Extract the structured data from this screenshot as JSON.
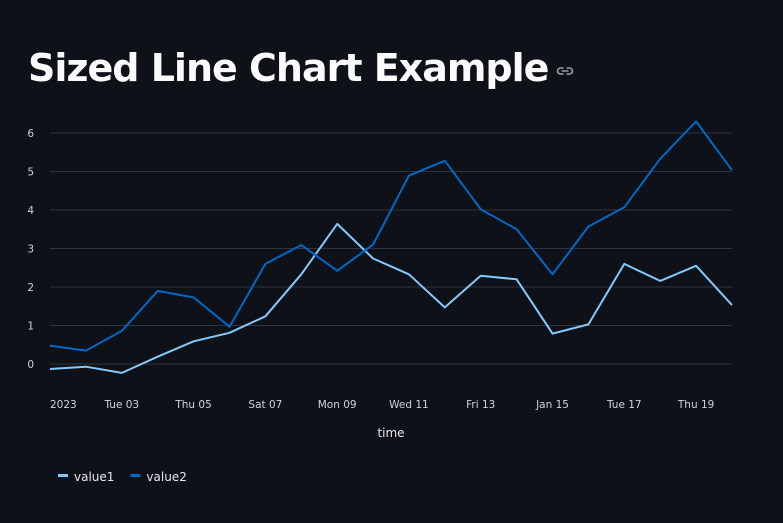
{
  "page": {
    "title": "Sized Line Chart Example"
  },
  "chart_data": {
    "type": "line",
    "xlabel": "time",
    "ylabel": "",
    "ylim": [
      -0.7,
      6.7
    ],
    "yticks": [
      0,
      1,
      2,
      3,
      4,
      5,
      6
    ],
    "x": [
      "2023-01-01",
      "2023-01-02",
      "2023-01-03",
      "2023-01-04",
      "2023-01-05",
      "2023-01-06",
      "2023-01-07",
      "2023-01-08",
      "2023-01-09",
      "2023-01-10",
      "2023-01-11",
      "2023-01-12",
      "2023-01-13",
      "2023-01-14",
      "2023-01-15",
      "2023-01-16",
      "2023-01-17",
      "2023-01-18",
      "2023-01-19",
      "2023-01-20"
    ],
    "xticks": [
      {
        "date": "2023-01-01",
        "label": "2023"
      },
      {
        "date": "2023-01-03",
        "label": "Tue 03"
      },
      {
        "date": "2023-01-05",
        "label": "Thu 05"
      },
      {
        "date": "2023-01-07",
        "label": "Sat 07"
      },
      {
        "date": "2023-01-09",
        "label": "Mon 09"
      },
      {
        "date": "2023-01-11",
        "label": "Wed 11"
      },
      {
        "date": "2023-01-13",
        "label": "Fri 13"
      },
      {
        "date": "2023-01-15",
        "label": "Jan 15"
      },
      {
        "date": "2023-01-17",
        "label": "Tue 17"
      },
      {
        "date": "2023-01-19",
        "label": "Thu 19"
      }
    ],
    "series": [
      {
        "name": "value1",
        "color": "#83c9ff",
        "values": [
          -0.13,
          -0.07,
          -0.23,
          0.19,
          0.59,
          0.81,
          1.24,
          2.33,
          3.64,
          2.74,
          2.33,
          1.47,
          2.29,
          2.2,
          0.79,
          1.03,
          2.6,
          2.16,
          2.55,
          1.53
        ]
      },
      {
        "name": "value2",
        "color": "#0068c9",
        "values": [
          0.48,
          0.35,
          0.86,
          1.9,
          1.73,
          0.97,
          2.6,
          3.09,
          2.42,
          3.1,
          4.89,
          5.28,
          4.02,
          3.5,
          2.33,
          3.57,
          4.07,
          5.33,
          6.3,
          5.03
        ]
      }
    ],
    "grid": true,
    "legend_position": "bottom-left"
  }
}
